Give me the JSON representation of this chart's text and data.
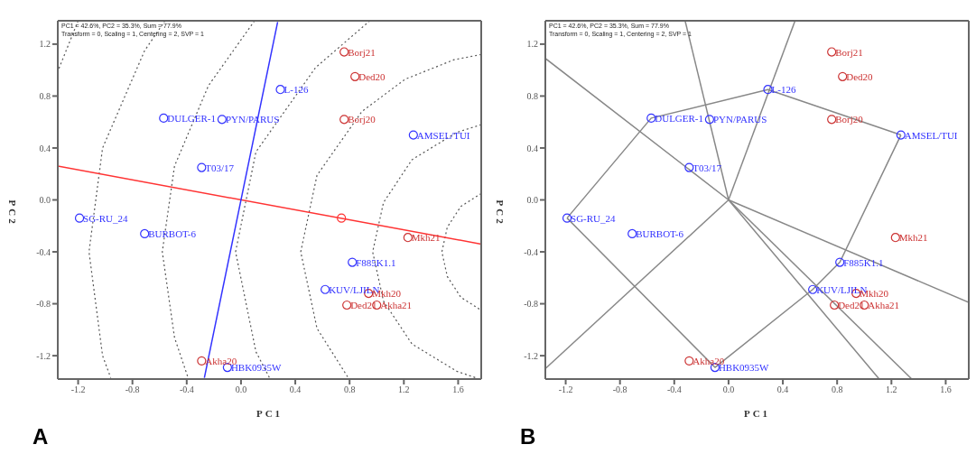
{
  "chart_data": [
    {
      "type": "scatter",
      "title": "A",
      "xlabel": "PC1",
      "ylabel": "PC2",
      "xlim": [
        -1.35,
        1.77
      ],
      "ylim": [
        -1.38,
        1.38
      ],
      "xticks": [
        -1.2,
        -0.8,
        -0.4,
        {
          "value": 0,
          "label": "0.0"
        },
        0.4,
        0.8,
        1.2,
        1.6
      ],
      "yticks": [
        -1.2,
        -0.8,
        -0.4,
        {
          "value": 0,
          "label": "0.0"
        },
        0.4,
        0.8,
        1.2
      ],
      "grid": false,
      "annotations": [
        "PC1 = 42.6%, PC2 = 35.3%, Sum = 77.9%",
        "Transform = 0, Scaling = 1, Centering = 2, SVP = 1",
        {
          "text": "DULGER-1",
          "x": -0.57,
          "y": 0.63
        },
        {
          "text": "PYN/PARUS",
          "x": -0.14,
          "y": 0.62
        },
        {
          "text": "L-126",
          "x": 0.29,
          "y": 0.85
        },
        {
          "text": "T03/17",
          "x": -0.29,
          "y": 0.25
        },
        {
          "text": "AMSEL/TUI",
          "x": 1.27,
          "y": 0.5
        },
        {
          "text": "SG-RU_24",
          "x": -1.19,
          "y": -0.14
        },
        {
          "text": "BURBOT-6",
          "x": -0.71,
          "y": -0.26
        },
        {
          "text": "F885K1.1",
          "x": 0.82,
          "y": -0.48
        },
        {
          "text": "KUV/LJILN",
          "x": 0.62,
          "y": -0.69
        },
        {
          "text": "HBK0935W",
          "x": -0.1,
          "y": -1.29
        },
        {
          "text": "Borj21",
          "x": 0.76,
          "y": 1.14
        },
        {
          "text": "Ded20",
          "x": 0.84,
          "y": 0.95
        },
        {
          "text": "Borj20",
          "x": 0.76,
          "y": 0.62
        },
        {
          "text": "Mkh21",
          "x": 1.23,
          "y": -0.29
        },
        {
          "text": "Mkh20",
          "x": 0.94,
          "y": -0.72
        },
        {
          "text": "Ded21",
          "x": 0.78,
          "y": -0.81
        },
        {
          "text": "Akha21",
          "x": 1.0,
          "y": -0.81
        },
        {
          "text": "Akha20",
          "x": -0.29,
          "y": -1.24
        }
      ],
      "series": [
        {
          "type": "line",
          "color": "#555555",
          "line_style": "dotted",
          "x": [
            1.77,
            1.62,
            1.52,
            1.48,
            1.52,
            1.62,
            1.77
          ],
          "values": [
            0.05,
            -0.05,
            -0.21,
            -0.4,
            -0.59,
            -0.75,
            -0.85
          ]
        },
        {
          "type": "line",
          "color": "#555555",
          "line_style": "dotted",
          "x": [
            1.77,
            1.59,
            1.26,
            1.05,
            0.97,
            1.05,
            1.26,
            1.59,
            1.73
          ],
          "values": [
            0.58,
            0.52,
            0.31,
            -0.02,
            -0.4,
            -0.78,
            -1.11,
            -1.32,
            -1.37
          ]
        },
        {
          "type": "line",
          "color": "#555555",
          "line_style": "dotted",
          "x": [
            1.77,
            1.57,
            1.21,
            0.89,
            0.56,
            0.44,
            0.56,
            0.79
          ],
          "values": [
            1.12,
            1.08,
            0.93,
            0.68,
            0.19,
            -0.4,
            -0.99,
            -1.37
          ]
        },
        {
          "type": "line",
          "color": "#555555",
          "line_style": "dotted",
          "x": [
            0.95,
            0.55,
            0.11,
            -0.04,
            0.11,
            0.21
          ],
          "values": [
            1.38,
            1.02,
            0.37,
            -0.4,
            -1.17,
            -1.37
          ]
        },
        {
          "type": "line",
          "color": "#555555",
          "line_style": "dotted",
          "x": [
            0.1,
            -0.24,
            -0.49,
            -0.58,
            -0.49,
            -0.39
          ],
          "values": [
            1.38,
            0.88,
            0.26,
            -0.4,
            -1.06,
            -1.37
          ]
        },
        {
          "type": "line",
          "color": "#555555",
          "line_style": "dotted",
          "x": [
            -0.56,
            -0.71,
            -1.02,
            -1.12,
            -1.02,
            -0.96
          ],
          "values": [
            1.38,
            1.15,
            0.4,
            -0.4,
            -1.2,
            -1.37
          ]
        },
        {
          "type": "line",
          "color": "#555555",
          "line_style": "dotted",
          "x": [
            -1.2,
            -1.35
          ],
          "values": [
            1.38,
            0.99
          ]
        },
        {
          "type": "line",
          "color": "#ff3333",
          "line_style": "solid",
          "x": [
            -1.35,
            1.77
          ],
          "values": [
            0.26,
            -0.34
          ]
        },
        {
          "type": "line",
          "color": "#3333ff",
          "line_style": "solid",
          "x": [
            -0.27,
            0.27
          ],
          "values": [
            -1.37,
            1.37
          ]
        },
        {
          "type": "scatter",
          "color": "#ff3333",
          "marker": "circle",
          "x": [
            0.74
          ],
          "values": [
            -0.14
          ]
        },
        {
          "type": "scatter",
          "color": "#3333ff",
          "marker": "circle",
          "x": [
            -0.57,
            -0.14,
            0.29,
            -0.29,
            1.27,
            -1.19,
            -0.71,
            0.82,
            0.62,
            -0.1
          ],
          "values": [
            0.63,
            0.62,
            0.85,
            0.25,
            0.5,
            -0.14,
            -0.26,
            -0.48,
            -0.69,
            -1.29
          ]
        },
        {
          "type": "scatter",
          "color": "#cc3333",
          "marker": "circle",
          "x": [
            0.76,
            0.84,
            0.76,
            1.23,
            0.94,
            0.78,
            1.0,
            -0.29
          ],
          "values": [
            1.14,
            0.95,
            0.62,
            -0.29,
            -0.72,
            -0.81,
            -0.81,
            -1.24
          ]
        }
      ]
    },
    {
      "type": "scatter",
      "title": "B",
      "xlabel": "PC1",
      "ylabel": "PC2",
      "xlim": [
        -1.35,
        1.77
      ],
      "ylim": [
        -1.38,
        1.38
      ],
      "xticks": [
        -1.2,
        -0.8,
        -0.4,
        {
          "value": 0,
          "label": "0.0"
        },
        0.4,
        0.8,
        1.2,
        1.6
      ],
      "yticks": [
        -1.2,
        -0.8,
        -0.4,
        {
          "value": 0,
          "label": "0.0"
        },
        0.4,
        0.8,
        1.2
      ],
      "grid": false,
      "annotations": [
        "PC1 = 42.6%, PC2 = 35.3%, Sum = 77.9%",
        "Transform = 0, Scaling = 1, Centering = 2, SVP = 1",
        {
          "text": "DULGER-1",
          "x": -0.57,
          "y": 0.63
        },
        {
          "text": "PYN/PARUS",
          "x": -0.14,
          "y": 0.62
        },
        {
          "text": "L-126",
          "x": 0.29,
          "y": 0.85
        },
        {
          "text": "T03/17",
          "x": -0.29,
          "y": 0.25
        },
        {
          "text": "AMSEL/TUI",
          "x": 1.27,
          "y": 0.5
        },
        {
          "text": "SG-RU_24",
          "x": -1.19,
          "y": -0.14
        },
        {
          "text": "BURBOT-6",
          "x": -0.71,
          "y": -0.26
        },
        {
          "text": "F885K1.1",
          "x": 0.82,
          "y": -0.48
        },
        {
          "text": "KUV/LJILN",
          "x": 0.62,
          "y": -0.69
        },
        {
          "text": "HBK0935W",
          "x": -0.1,
          "y": -1.29
        },
        {
          "text": "Borj21",
          "x": 0.76,
          "y": 1.14
        },
        {
          "text": "Ded20",
          "x": 0.84,
          "y": 0.95
        },
        {
          "text": "Borj20",
          "x": 0.76,
          "y": 0.62
        },
        {
          "text": "Mkh21",
          "x": 1.23,
          "y": -0.29
        },
        {
          "text": "Mkh20",
          "x": 0.94,
          "y": -0.72
        },
        {
          "text": "Ded21",
          "x": 0.78,
          "y": -0.81
        },
        {
          "text": "Akha21",
          "x": 1.0,
          "y": -0.81
        },
        {
          "text": "Akha20",
          "x": -0.29,
          "y": -1.24
        }
      ],
      "series": [
        {
          "type": "line",
          "color": "#888888",
          "line_style": "solid",
          "x": [
            -1.19,
            -0.57,
            0.29,
            1.27
          ],
          "values": [
            -0.14,
            0.63,
            0.85,
            0.5
          ]
        },
        {
          "type": "line",
          "color": "#888888",
          "line_style": "solid",
          "x": [
            -1.19,
            -0.1,
            0.62,
            0.82,
            1.27
          ],
          "values": [
            -0.14,
            -1.29,
            -0.69,
            -0.48,
            0.5
          ]
        },
        {
          "type": "line",
          "color": "#888888",
          "line_style": "solid",
          "x": [
            0,
            -0.32
          ],
          "values": [
            0,
            1.38
          ]
        },
        {
          "type": "line",
          "color": "#888888",
          "line_style": "solid",
          "x": [
            0,
            0.49
          ],
          "values": [
            0,
            1.38
          ]
        },
        {
          "type": "line",
          "color": "#888888",
          "line_style": "solid",
          "x": [
            -1.35,
            0,
            1.11
          ],
          "values": [
            1.09,
            0,
            -1.38
          ]
        },
        {
          "type": "line",
          "color": "#888888",
          "line_style": "solid",
          "x": [
            0,
            -1.35
          ],
          "values": [
            0,
            -1.3
          ]
        },
        {
          "type": "line",
          "color": "#888888",
          "line_style": "solid",
          "x": [
            0,
            1.35
          ],
          "values": [
            0,
            -1.38
          ]
        },
        {
          "type": "line",
          "color": "#888888",
          "line_style": "solid",
          "x": [
            0,
            1.77
          ],
          "values": [
            0,
            -0.79
          ]
        },
        {
          "type": "scatter",
          "color": "#3333ff",
          "marker": "circle",
          "x": [
            -0.57,
            -0.14,
            0.29,
            -0.29,
            1.27,
            -1.19,
            -0.71,
            0.82,
            0.62,
            -0.1
          ],
          "values": [
            0.63,
            0.62,
            0.85,
            0.25,
            0.5,
            -0.14,
            -0.26,
            -0.48,
            -0.69,
            -1.29
          ]
        },
        {
          "type": "scatter",
          "color": "#cc3333",
          "marker": "circle",
          "x": [
            0.76,
            0.84,
            0.76,
            1.23,
            0.94,
            0.78,
            1.0,
            -0.29
          ],
          "values": [
            1.14,
            0.95,
            0.62,
            -0.29,
            -0.72,
            -0.81,
            -0.81,
            -1.24
          ]
        }
      ]
    }
  ]
}
